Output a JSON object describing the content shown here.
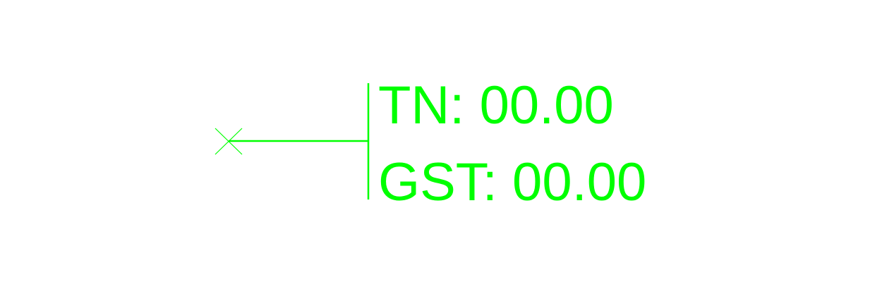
{
  "annotation": {
    "color": "#00ff00",
    "lines": [
      {
        "key": "TN:",
        "value": "00.00"
      },
      {
        "key": "GST:",
        "value": "00.00"
      }
    ]
  }
}
